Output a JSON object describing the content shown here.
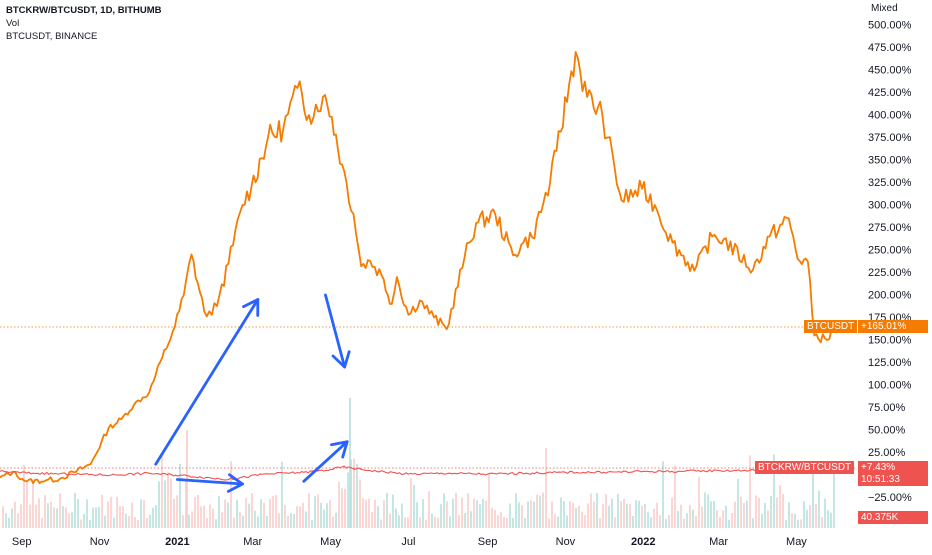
{
  "legend": {
    "symbol": "BTCKRW/BTCUSDT, 1D, BITHUMB",
    "vol": "Vol",
    "compare": "BTCUSDT, BINANCE"
  },
  "scale_mode": "Mixed",
  "badges": {
    "btcusdt_name": "BTCUSDT",
    "btcusdt_value": "+165.01%",
    "ratio_name": "BTCKRW/BTCUSDT",
    "ratio_value": "+7.43%",
    "countdown": "10:51:33",
    "volume_value": "40.375K"
  },
  "colors": {
    "btcusdt": "#f57c00",
    "ratio": "#ef5350",
    "up": "#26a69a",
    "arrows": "#2962ff"
  },
  "chart_data": {
    "type": "line",
    "title": "",
    "xlabel": "",
    "ylabel": "",
    "ylim": [
      -45,
      515
    ],
    "grid": false,
    "x_ticks": [
      {
        "label": "Sep",
        "date": "2020-09-01"
      },
      {
        "label": "Nov",
        "date": "2020-11-01"
      },
      {
        "label": "2021",
        "date": "2021-01-01",
        "bold": true
      },
      {
        "label": "Mar",
        "date": "2021-03-01"
      },
      {
        "label": "May",
        "date": "2021-05-01"
      },
      {
        "label": "Jul",
        "date": "2021-07-01"
      },
      {
        "label": "Sep",
        "date": "2021-09-01"
      },
      {
        "label": "Nov",
        "date": "2021-11-01"
      },
      {
        "label": "2022",
        "date": "2022-01-01",
        "bold": true
      },
      {
        "label": "Mar",
        "date": "2022-03-01"
      },
      {
        "label": "May",
        "date": "2022-05-01"
      }
    ],
    "y_ticks": [
      "500.00%",
      "475.00%",
      "450.00%",
      "425.00%",
      "400.00%",
      "375.00%",
      "350.00%",
      "325.00%",
      "300.00%",
      "275.00%",
      "250.00%",
      "225.00%",
      "200.00%",
      "175.00%",
      "150.00%",
      "125.00%",
      "100.00%",
      "75.00%",
      "50.00%",
      "25.00%",
      "−25.00%"
    ],
    "series": [
      {
        "name": "BTCUSDT",
        "x": [
          "2020-08-15",
          "2020-08-25",
          "2020-09-05",
          "2020-09-20",
          "2020-10-01",
          "2020-10-12",
          "2020-10-25",
          "2020-11-08",
          "2020-11-18",
          "2020-11-28",
          "2020-12-10",
          "2020-12-20",
          "2020-12-30",
          "2021-01-06",
          "2021-01-12",
          "2021-01-22",
          "2021-01-28",
          "2021-02-03",
          "2021-02-10",
          "2021-02-21",
          "2021-02-28",
          "2021-03-13",
          "2021-03-25",
          "2021-04-05",
          "2021-04-14",
          "2021-04-25",
          "2021-05-02",
          "2021-05-10",
          "2021-05-19",
          "2021-05-25",
          "2021-06-01",
          "2021-06-10",
          "2021-06-18",
          "2021-06-22",
          "2021-07-01",
          "2021-07-10",
          "2021-07-21",
          "2021-07-31",
          "2021-08-14",
          "2021-08-23",
          "2021-09-07",
          "2021-09-21",
          "2021-09-29",
          "2021-10-06",
          "2021-10-20",
          "2021-10-25",
          "2021-11-09",
          "2021-11-18",
          "2021-11-30",
          "2021-12-04",
          "2021-12-15",
          "2021-12-31",
          "2022-01-10",
          "2022-01-24",
          "2022-02-10",
          "2022-02-24",
          "2022-03-05",
          "2022-03-28",
          "2022-04-10",
          "2022-04-25",
          "2022-05-02",
          "2022-05-10",
          "2022-05-15",
          "2022-05-25",
          "2022-06-01"
        ],
        "values": [
          -3,
          3,
          -7,
          -6,
          -4,
          3,
          12,
          52,
          62,
          78,
          92,
          130,
          165,
          200,
          245,
          182,
          178,
          200,
          235,
          300,
          320,
          375,
          385,
          430,
          400,
          420,
          398,
          345,
          290,
          232,
          238,
          222,
          190,
          220,
          178,
          194,
          175,
          162,
          242,
          280,
          290,
          244,
          258,
          264,
          325,
          360,
          470,
          420,
          400,
          375,
          305,
          318,
          300,
          258,
          227,
          265,
          262,
          228,
          265,
          285,
          240,
          237,
          155,
          150,
          165
        ]
      },
      {
        "name": "BTCKRW/BTCUSDT",
        "x": [
          "2020-08-15",
          "2020-09-10",
          "2020-10-10",
          "2020-11-10",
          "2020-12-10",
          "2021-01-10",
          "2021-02-10",
          "2021-03-10",
          "2021-04-10",
          "2021-05-01",
          "2021-05-10",
          "2021-06-01",
          "2021-07-01",
          "2021-08-01",
          "2021-09-01",
          "2021-10-01",
          "2021-11-01",
          "2021-12-01",
          "2022-01-01",
          "2022-02-01",
          "2022-03-01",
          "2022-04-01",
          "2022-05-01",
          "2022-06-01"
        ],
        "values": [
          4,
          2,
          1,
          0,
          2,
          -1,
          -5,
          1,
          3,
          6,
          9,
          5,
          1,
          2,
          1,
          2,
          3,
          3,
          4,
          4,
          5,
          5,
          6,
          7.43
        ]
      }
    ],
    "annotations": [
      {
        "type": "arrow",
        "from": [
          "2020-12-15",
          12
        ],
        "to": [
          "2021-03-05",
          195
        ]
      },
      {
        "type": "arrow",
        "from": [
          "2021-04-27",
          200
        ],
        "to": [
          "2021-05-12",
          120
        ]
      },
      {
        "type": "arrow",
        "from": [
          "2021-01-01",
          -5
        ],
        "to": [
          "2021-02-21",
          -10
        ]
      },
      {
        "type": "arrow",
        "from": [
          "2021-04-10",
          -7
        ],
        "to": [
          "2021-05-14",
          37
        ]
      }
    ]
  }
}
